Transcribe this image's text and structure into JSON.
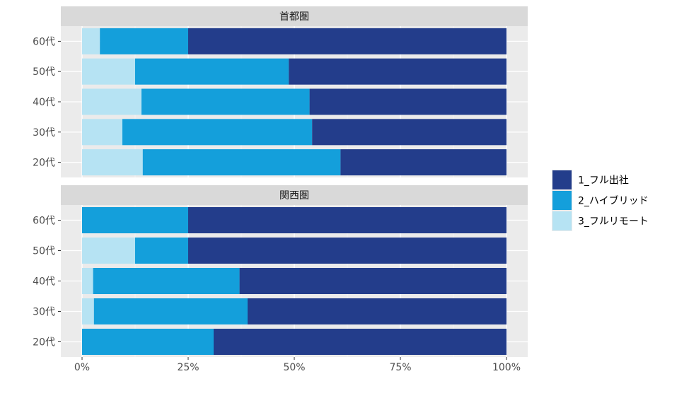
{
  "chart_data": {
    "type": "bar",
    "orientation": "horizontal",
    "stacked": true,
    "percent": true,
    "categories": [
      "60代",
      "50代",
      "40代",
      "30代",
      "20代"
    ],
    "x_ticks": [
      "0%",
      "25%",
      "50%",
      "75%",
      "100%"
    ],
    "xlim": [
      0,
      100
    ],
    "grid": true,
    "legend": {
      "position": "right",
      "entries": [
        {
          "name": "1_フル出社",
          "color": "#233d8b"
        },
        {
          "name": "2_ハイブリッド",
          "color": "#149fdb"
        },
        {
          "name": "3_フルリモート",
          "color": "#b6e3f3"
        }
      ]
    },
    "panels": [
      {
        "title": "首都圏",
        "series": [
          {
            "name": "3_フルリモート",
            "values": [
              4.2,
              12.5,
              14.0,
              9.5,
              14.3
            ]
          },
          {
            "name": "2_ハイブリッド",
            "values": [
              20.8,
              36.2,
              39.6,
              44.7,
              46.6
            ]
          },
          {
            "name": "1_フル出社",
            "values": [
              75.0,
              51.3,
              46.4,
              45.8,
              39.1
            ]
          }
        ]
      },
      {
        "title": "関西圏",
        "series": [
          {
            "name": "3_フルリモート",
            "values": [
              0.0,
              12.5,
              2.6,
              2.8,
              0.0
            ]
          },
          {
            "name": "2_ハイブリッド",
            "values": [
              25.0,
              12.5,
              34.5,
              36.2,
              31.0
            ]
          },
          {
            "name": "1_フル出社",
            "values": [
              75.0,
              75.0,
              62.9,
              61.0,
              69.0
            ]
          }
        ]
      }
    ]
  }
}
